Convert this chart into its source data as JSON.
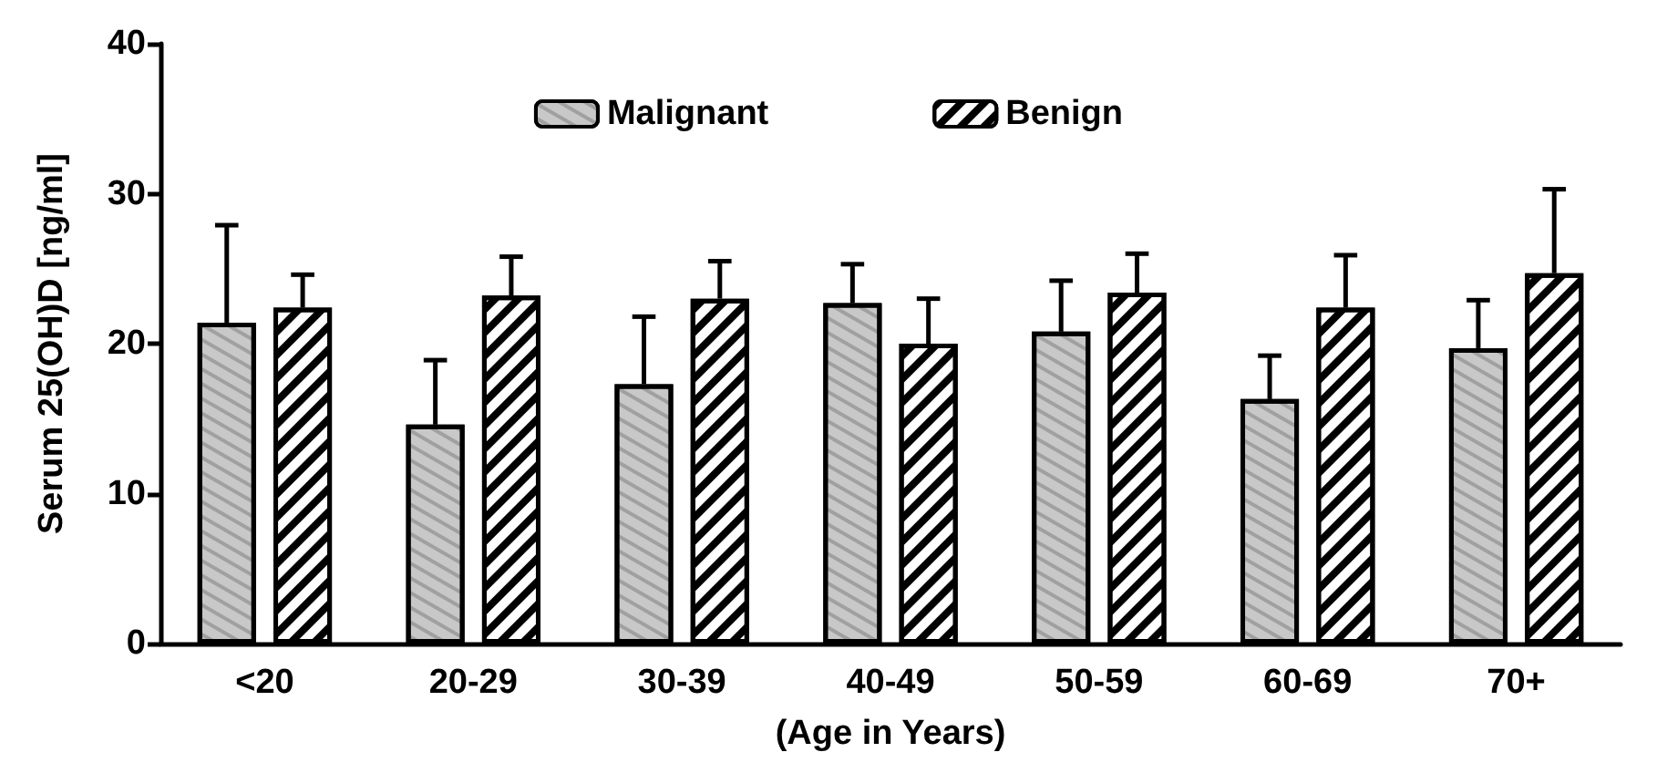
{
  "chart_data": {
    "type": "bar",
    "xlabel": "(Age in Years)",
    "ylabel": "Serum 25(OH)D [ng/ml]",
    "categories": [
      "<20",
      "20-29",
      "30-39",
      "40-49",
      "50-59",
      "60-69",
      "70+"
    ],
    "series": [
      {
        "name": "Malignant",
        "color": "#c8c8c8",
        "values": [
          21.4,
          14.6,
          17.3,
          22.7,
          20.8,
          16.3,
          19.7
        ],
        "errors": [
          [
            21.4,
            27.9
          ],
          [
            14.6,
            18.9
          ],
          [
            17.3,
            21.8
          ],
          [
            22.7,
            25.3
          ],
          [
            20.8,
            24.2
          ],
          [
            16.3,
            19.2
          ],
          [
            19.7,
            22.9
          ]
        ]
      },
      {
        "name": "Benign",
        "color": "#ffffff",
        "values": [
          22.4,
          23.2,
          23.0,
          20.0,
          23.4,
          22.4,
          24.7
        ],
        "errors": [
          [
            22.4,
            24.6
          ],
          [
            23.2,
            25.8
          ],
          [
            23.0,
            25.5
          ],
          [
            20.0,
            23.0
          ],
          [
            23.4,
            26.0
          ],
          [
            22.4,
            25.9
          ],
          [
            24.7,
            30.3
          ]
        ]
      }
    ],
    "ylim": [
      0,
      40
    ],
    "yticks": [
      0,
      10,
      20,
      30,
      40
    ],
    "grid": false,
    "legend": "top"
  }
}
